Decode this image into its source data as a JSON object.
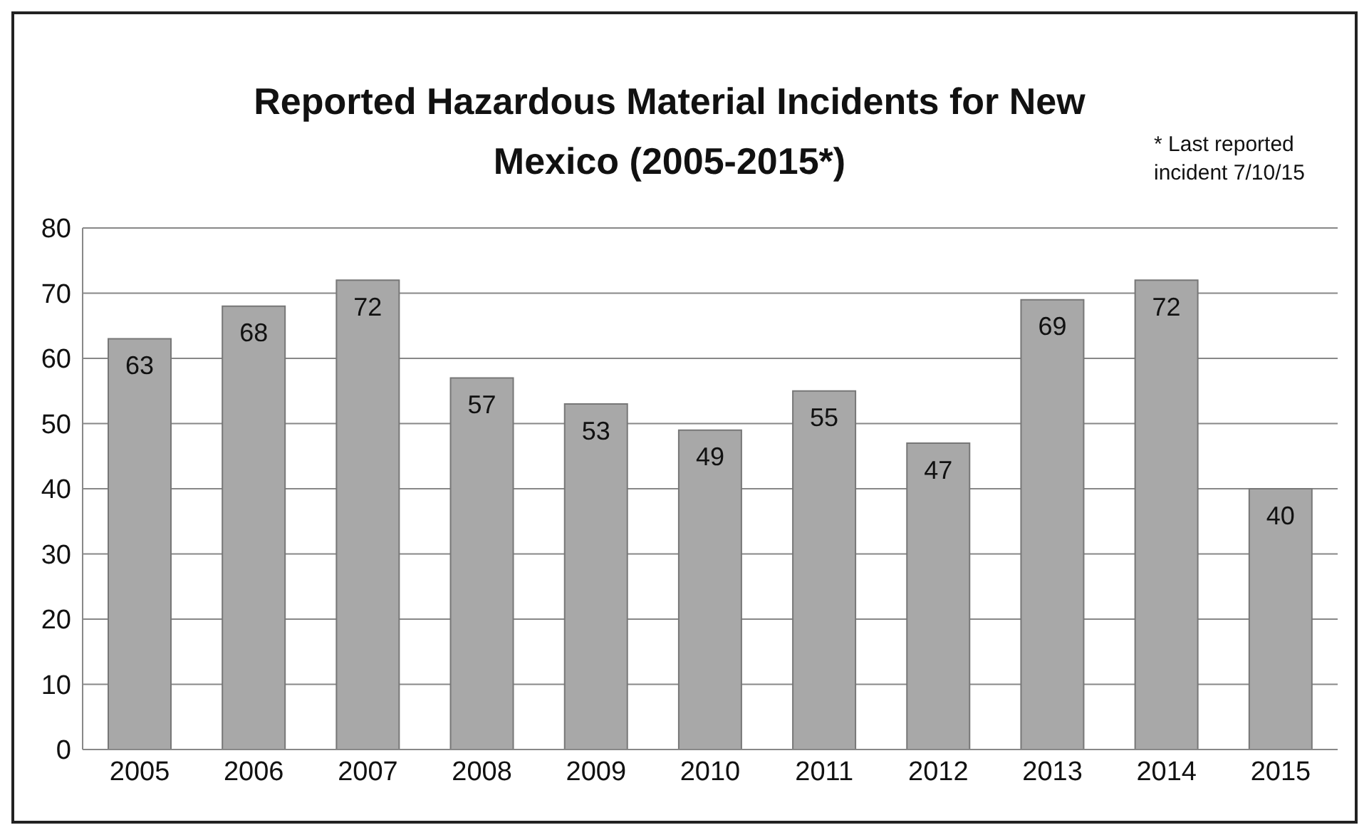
{
  "chart_data": {
    "type": "bar",
    "title": "Reported Hazardous Material Incidents for New Mexico (2005-2015*)",
    "annotations": [
      "* Last reported incident 7/10/15"
    ],
    "categories": [
      "2005",
      "2006",
      "2007",
      "2008",
      "2009",
      "2010",
      "2011",
      "2012",
      "2013",
      "2014",
      "2015"
    ],
    "values": [
      63,
      68,
      72,
      57,
      53,
      49,
      55,
      47,
      69,
      72,
      40
    ],
    "color": "#a8a8a8",
    "ylim": [
      0,
      80
    ],
    "yticks": [
      0,
      10,
      20,
      30,
      40,
      50,
      60,
      70,
      80
    ],
    "grid": "y",
    "data_labels": true
  }
}
